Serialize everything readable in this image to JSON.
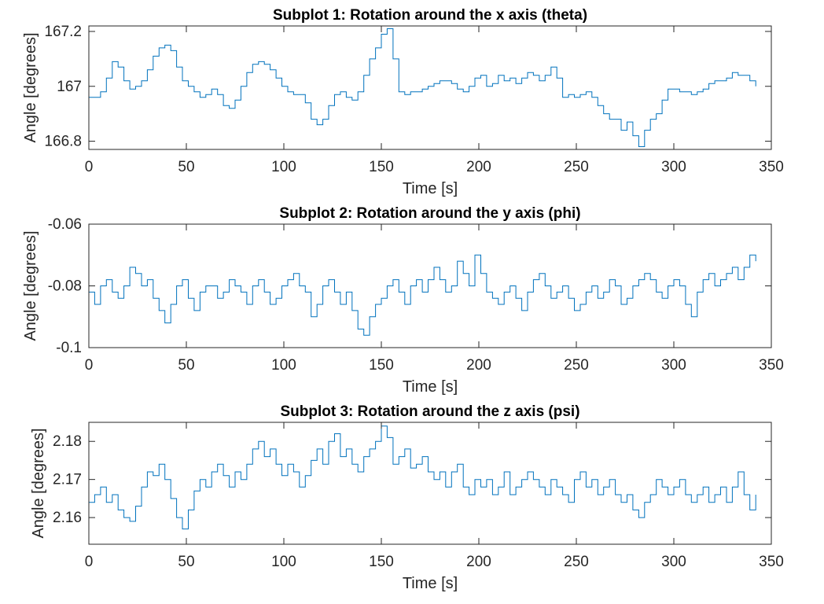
{
  "chart_data": [
    {
      "type": "line",
      "title": "Subplot 1: Rotation around the x axis (theta)",
      "xlabel": "Time [s]",
      "ylabel": "Angle [degrees]",
      "xlim": [
        0,
        350
      ],
      "ylim": [
        166.77,
        167.22
      ],
      "xticks": [
        0,
        50,
        100,
        150,
        200,
        250,
        300,
        350
      ],
      "xtick_labels": [
        "0",
        "50",
        "100",
        "150",
        "200",
        "250",
        "300",
        "350"
      ],
      "yticks": [
        166.8,
        167,
        167.2
      ],
      "ytick_labels": [
        "166.8",
        "167",
        "167.2"
      ],
      "grid": false,
      "color": "#0072BD",
      "series": [
        {
          "x": [
            0,
            3,
            6,
            9,
            12,
            15,
            18,
            21,
            24,
            27,
            30,
            33,
            36,
            39,
            42,
            45,
            48,
            51,
            54,
            57,
            60,
            63,
            66,
            69,
            72,
            75,
            78,
            81,
            84,
            87,
            90,
            93,
            96,
            99,
            102,
            105,
            108,
            111,
            114,
            117,
            120,
            123,
            126,
            129,
            132,
            135,
            138,
            141,
            144,
            147,
            150,
            153,
            156,
            159,
            162,
            165,
            168,
            171,
            174,
            177,
            180,
            183,
            186,
            189,
            192,
            195,
            198,
            201,
            204,
            207,
            210,
            213,
            216,
            219,
            222,
            225,
            228,
            231,
            234,
            237,
            240,
            243,
            246,
            249,
            252,
            255,
            258,
            261,
            264,
            267,
            270,
            273,
            276,
            279,
            282,
            285,
            288,
            291,
            294,
            297,
            300,
            303,
            306,
            309,
            312,
            315,
            318,
            321,
            324,
            327,
            330,
            333,
            336,
            339,
            342
          ],
          "y": [
            166.96,
            166.96,
            166.98,
            167.03,
            167.09,
            167.07,
            167.02,
            166.99,
            167.0,
            167.02,
            167.06,
            167.11,
            167.14,
            167.15,
            167.13,
            167.07,
            167.02,
            167.0,
            166.98,
            166.96,
            166.97,
            166.99,
            166.97,
            166.93,
            166.92,
            166.95,
            167.0,
            167.05,
            167.08,
            167.09,
            167.08,
            167.06,
            167.03,
            167.0,
            166.98,
            166.97,
            166.97,
            166.94,
            166.88,
            166.86,
            166.88,
            166.93,
            166.97,
            166.98,
            166.96,
            166.95,
            166.98,
            167.04,
            167.1,
            167.14,
            167.19,
            167.21,
            167.1,
            166.98,
            166.97,
            166.98,
            166.98,
            166.99,
            167.0,
            167.01,
            167.02,
            167.02,
            167.01,
            166.99,
            166.98,
            167.0,
            167.03,
            167.04,
            167.0,
            167.01,
            167.04,
            167.02,
            167.03,
            167.01,
            167.03,
            167.05,
            167.04,
            167.02,
            167.04,
            167.07,
            167.03,
            166.96,
            166.97,
            166.96,
            166.97,
            166.98,
            166.96,
            166.93,
            166.9,
            166.88,
            166.88,
            166.84,
            166.87,
            166.82,
            166.78,
            166.84,
            166.88,
            166.9,
            166.95,
            166.99,
            166.99,
            166.98,
            166.98,
            166.97,
            166.98,
            166.99,
            167.01,
            167.02,
            167.02,
            167.03,
            167.05,
            167.04,
            167.04,
            167.02,
            167.0
          ]
        }
      ]
    },
    {
      "type": "line",
      "title": "Subplot 2: Rotation around the y axis (phi)",
      "xlabel": "Time [s]",
      "ylabel": "Angle [degrees]",
      "xlim": [
        0,
        350
      ],
      "ylim": [
        -0.1,
        -0.06
      ],
      "xticks": [
        0,
        50,
        100,
        150,
        200,
        250,
        300,
        350
      ],
      "xtick_labels": [
        "0",
        "50",
        "100",
        "150",
        "200",
        "250",
        "300",
        "350"
      ],
      "yticks": [
        -0.1,
        -0.08,
        -0.06
      ],
      "ytick_labels": [
        "-0.1",
        "-0.08",
        "-0.06"
      ],
      "grid": false,
      "color": "#0072BD",
      "series": [
        {
          "x": [
            0,
            3,
            6,
            9,
            12,
            15,
            18,
            21,
            24,
            27,
            30,
            33,
            36,
            39,
            42,
            45,
            48,
            51,
            54,
            57,
            60,
            63,
            66,
            69,
            72,
            75,
            78,
            81,
            84,
            87,
            90,
            93,
            96,
            99,
            102,
            105,
            108,
            111,
            114,
            117,
            120,
            123,
            126,
            129,
            132,
            135,
            138,
            141,
            144,
            147,
            150,
            153,
            156,
            159,
            162,
            165,
            168,
            171,
            174,
            177,
            180,
            183,
            186,
            189,
            192,
            195,
            198,
            201,
            204,
            207,
            210,
            213,
            216,
            219,
            222,
            225,
            228,
            231,
            234,
            237,
            240,
            243,
            246,
            249,
            252,
            255,
            258,
            261,
            264,
            267,
            270,
            273,
            276,
            279,
            282,
            285,
            288,
            291,
            294,
            297,
            300,
            303,
            306,
            309,
            312,
            315,
            318,
            321,
            324,
            327,
            330,
            333,
            336,
            339,
            342
          ],
          "y": [
            -0.082,
            -0.086,
            -0.08,
            -0.078,
            -0.082,
            -0.084,
            -0.08,
            -0.074,
            -0.076,
            -0.08,
            -0.078,
            -0.084,
            -0.088,
            -0.092,
            -0.086,
            -0.08,
            -0.078,
            -0.084,
            -0.088,
            -0.082,
            -0.08,
            -0.08,
            -0.084,
            -0.082,
            -0.078,
            -0.08,
            -0.082,
            -0.086,
            -0.08,
            -0.078,
            -0.082,
            -0.086,
            -0.084,
            -0.08,
            -0.078,
            -0.076,
            -0.08,
            -0.082,
            -0.09,
            -0.086,
            -0.08,
            -0.078,
            -0.082,
            -0.086,
            -0.082,
            -0.088,
            -0.094,
            -0.096,
            -0.09,
            -0.086,
            -0.084,
            -0.08,
            -0.078,
            -0.082,
            -0.086,
            -0.08,
            -0.078,
            -0.082,
            -0.078,
            -0.074,
            -0.078,
            -0.082,
            -0.08,
            -0.072,
            -0.076,
            -0.08,
            -0.07,
            -0.076,
            -0.082,
            -0.084,
            -0.086,
            -0.082,
            -0.08,
            -0.084,
            -0.088,
            -0.082,
            -0.078,
            -0.076,
            -0.08,
            -0.084,
            -0.082,
            -0.08,
            -0.084,
            -0.088,
            -0.086,
            -0.082,
            -0.08,
            -0.084,
            -0.082,
            -0.078,
            -0.08,
            -0.086,
            -0.084,
            -0.08,
            -0.078,
            -0.076,
            -0.078,
            -0.082,
            -0.084,
            -0.08,
            -0.078,
            -0.08,
            -0.086,
            -0.09,
            -0.082,
            -0.078,
            -0.076,
            -0.08,
            -0.078,
            -0.076,
            -0.074,
            -0.078,
            -0.074,
            -0.07,
            -0.072
          ]
        }
      ]
    },
    {
      "type": "line",
      "title": "Subplot 3: Rotation around the z axis (psi)",
      "xlabel": "Time [s]",
      "ylabel": "Angle [degrees]",
      "xlim": [
        0,
        350
      ],
      "ylim": [
        2.153,
        2.185
      ],
      "xticks": [
        0,
        50,
        100,
        150,
        200,
        250,
        300,
        350
      ],
      "xtick_labels": [
        "0",
        "50",
        "100",
        "150",
        "200",
        "250",
        "300",
        "350"
      ],
      "yticks": [
        2.16,
        2.17,
        2.18
      ],
      "ytick_labels": [
        "2.16",
        "2.17",
        "2.18"
      ],
      "grid": false,
      "color": "#0072BD",
      "series": [
        {
          "x": [
            0,
            3,
            6,
            9,
            12,
            15,
            18,
            21,
            24,
            27,
            30,
            33,
            36,
            39,
            42,
            45,
            48,
            51,
            54,
            57,
            60,
            63,
            66,
            69,
            72,
            75,
            78,
            81,
            84,
            87,
            90,
            93,
            96,
            99,
            102,
            105,
            108,
            111,
            114,
            117,
            120,
            123,
            126,
            129,
            132,
            135,
            138,
            141,
            144,
            147,
            150,
            153,
            156,
            159,
            162,
            165,
            168,
            171,
            174,
            177,
            180,
            183,
            186,
            189,
            192,
            195,
            198,
            201,
            204,
            207,
            210,
            213,
            216,
            219,
            222,
            225,
            228,
            231,
            234,
            237,
            240,
            243,
            246,
            249,
            252,
            255,
            258,
            261,
            264,
            267,
            270,
            273,
            276,
            279,
            282,
            285,
            288,
            291,
            294,
            297,
            300,
            303,
            306,
            309,
            312,
            315,
            318,
            321,
            324,
            327,
            330,
            333,
            336,
            339,
            342
          ],
          "y": [
            2.164,
            2.166,
            2.168,
            2.164,
            2.166,
            2.162,
            2.16,
            2.159,
            2.163,
            2.168,
            2.172,
            2.171,
            2.174,
            2.17,
            2.165,
            2.16,
            2.157,
            2.162,
            2.167,
            2.17,
            2.168,
            2.172,
            2.174,
            2.171,
            2.168,
            2.172,
            2.17,
            2.174,
            2.178,
            2.18,
            2.176,
            2.178,
            2.174,
            2.171,
            2.174,
            2.172,
            2.168,
            2.171,
            2.175,
            2.178,
            2.174,
            2.18,
            2.182,
            2.176,
            2.178,
            2.174,
            2.172,
            2.176,
            2.178,
            2.18,
            2.184,
            2.181,
            2.174,
            2.176,
            2.178,
            2.173,
            2.174,
            2.176,
            2.172,
            2.17,
            2.172,
            2.168,
            2.172,
            2.174,
            2.168,
            2.166,
            2.17,
            2.168,
            2.17,
            2.166,
            2.168,
            2.172,
            2.166,
            2.168,
            2.17,
            2.172,
            2.17,
            2.168,
            2.166,
            2.17,
            2.168,
            2.166,
            2.164,
            2.17,
            2.172,
            2.168,
            2.17,
            2.166,
            2.168,
            2.17,
            2.166,
            2.164,
            2.166,
            2.162,
            2.16,
            2.164,
            2.166,
            2.17,
            2.168,
            2.166,
            2.168,
            2.17,
            2.166,
            2.164,
            2.166,
            2.168,
            2.164,
            2.166,
            2.168,
            2.164,
            2.168,
            2.172,
            2.166,
            2.162,
            2.166
          ]
        }
      ]
    }
  ]
}
